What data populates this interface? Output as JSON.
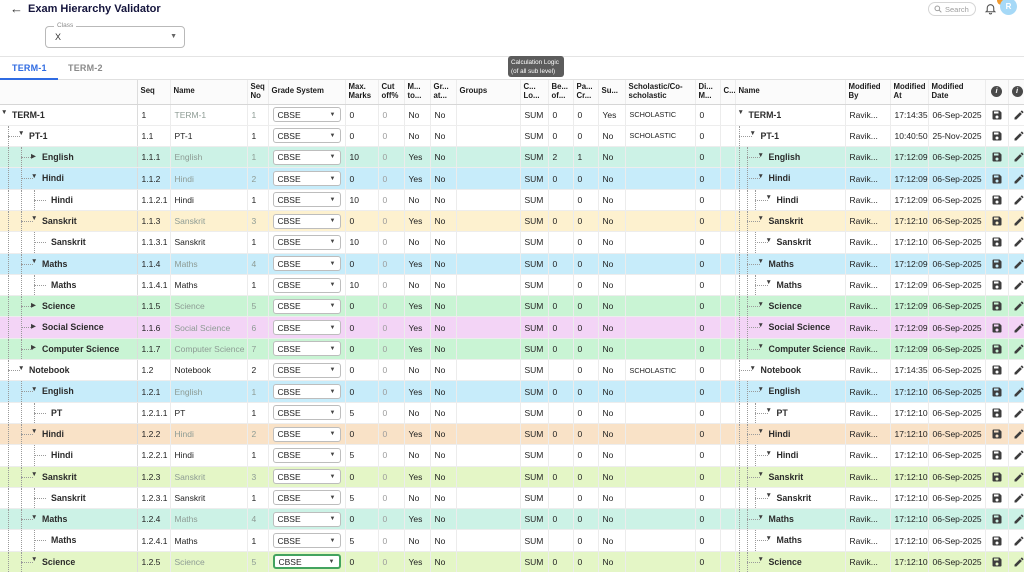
{
  "app": {
    "title": "Exam Hierarchy Validator",
    "back_icon": "←",
    "search_placeholder": "Search",
    "avatar_initial": "R",
    "accent_color": "#2f6be2",
    "save_color": "#2e6be4"
  },
  "filters": {
    "class_label": "Class",
    "class_value": "X"
  },
  "tabs": [
    {
      "label": "TERM-1",
      "active": true
    },
    {
      "label": "TERM-2",
      "active": false
    }
  ],
  "save_button": "SAVE",
  "tooltip": {
    "line1": "Calculation Logic",
    "line2": "(of all sub level)"
  },
  "palette": {
    "white": "#ffffff",
    "mint": "#ccf2e6",
    "cyan": "#c7ecfa",
    "cream": "#fdf1cf",
    "green": "#c9f4d4",
    "pink": "#f3d4f6",
    "peach": "#f9e2c7",
    "lime": "#e4f6c6"
  },
  "columns": [
    {
      "id": "tree",
      "lines": [
        "",
        ""
      ]
    },
    {
      "id": "seq",
      "lines": [
        "Seq",
        ""
      ]
    },
    {
      "id": "name",
      "lines": [
        "Name",
        ""
      ]
    },
    {
      "id": "seq_no",
      "lines": [
        "Seq",
        "No"
      ]
    },
    {
      "id": "grade",
      "lines": [
        "Grade System",
        ""
      ]
    },
    {
      "id": "max_marks",
      "lines": [
        "Max.",
        "Marks"
      ]
    },
    {
      "id": "cut_off",
      "lines": [
        "Cut",
        "off%"
      ]
    },
    {
      "id": "m_to",
      "lines": [
        "M...",
        "to..."
      ]
    },
    {
      "id": "gr_at",
      "lines": [
        "Gr...",
        "at..."
      ]
    },
    {
      "id": "groups",
      "lines": [
        "Groups",
        ""
      ]
    },
    {
      "id": "calc_logic",
      "lines": [
        "C...",
        "Lo..."
      ]
    },
    {
      "id": "best_of",
      "lines": [
        "Be...",
        "of..."
      ]
    },
    {
      "id": "pass_cr",
      "lines": [
        "Pa...",
        "Cr..."
      ]
    },
    {
      "id": "su",
      "lines": [
        "Su...",
        ""
      ]
    },
    {
      "id": "scholastic",
      "lines": [
        "Scholastic/Co-",
        "scholastic"
      ]
    },
    {
      "id": "di_m",
      "lines": [
        "Di...",
        "M..."
      ]
    },
    {
      "id": "c",
      "lines": [
        "C...",
        ""
      ]
    },
    {
      "id": "name2",
      "lines": [
        "Name",
        ""
      ]
    },
    {
      "id": "modified_by",
      "lines": [
        "Modified",
        "By"
      ]
    },
    {
      "id": "modified_at",
      "lines": [
        "Modified",
        "At"
      ]
    },
    {
      "id": "modified_date",
      "lines": [
        "Modified Date",
        ""
      ]
    },
    {
      "id": "save_col",
      "lines": [],
      "icon": "info-icon"
    },
    {
      "id": "edit_col",
      "lines": [],
      "icon": "info-icon"
    }
  ],
  "rows": [
    {
      "level": 0,
      "arrow": "down",
      "name": "TERM-1",
      "seq": "1",
      "seq_no": "1",
      "grade": "CBSE",
      "max_marks": "0",
      "cut_off": "0",
      "m_to": "No",
      "gr_at": "No",
      "groups": "",
      "calc_logic": "SUM",
      "best_of": "0",
      "pass_cr": "0",
      "su": "Yes",
      "scholastic": "SCHOLASTIC",
      "di_m": "0",
      "c": "",
      "modified_by": "Ravik...",
      "modified_at": "17:14:35",
      "modified_date": "06-Sep-2025",
      "color": "white",
      "name_muted": true,
      "focus": false
    },
    {
      "level": 1,
      "arrow": "down",
      "name": "PT-1",
      "seq": "1.1",
      "seq_no": "1",
      "grade": "CBSE",
      "max_marks": "0",
      "cut_off": "0",
      "m_to": "No",
      "gr_at": "No",
      "groups": "",
      "calc_logic": "SUM",
      "best_of": "0",
      "pass_cr": "0",
      "su": "No",
      "scholastic": "SCHOLASTIC",
      "di_m": "0",
      "c": "",
      "modified_by": "Ravik...",
      "modified_at": "10:40:50",
      "modified_date": "25-Nov-2025",
      "color": "white",
      "name_muted": false,
      "focus": false
    },
    {
      "level": 2,
      "arrow": "right",
      "name": "English",
      "seq": "1.1.1",
      "seq_no": "1",
      "grade": "CBSE",
      "max_marks": "10",
      "cut_off": "0",
      "m_to": "Yes",
      "gr_at": "No",
      "groups": "",
      "calc_logic": "SUM",
      "best_of": "2",
      "pass_cr": "1",
      "su": "No",
      "scholastic": "",
      "di_m": "0",
      "c": "",
      "modified_by": "Ravik...",
      "modified_at": "17:12:09",
      "modified_date": "06-Sep-2025",
      "color": "mint",
      "name_muted": true,
      "focus": false
    },
    {
      "level": 2,
      "arrow": "down",
      "name": "Hindi",
      "seq": "1.1.2",
      "seq_no": "2",
      "grade": "CBSE",
      "max_marks": "0",
      "cut_off": "0",
      "m_to": "Yes",
      "gr_at": "No",
      "groups": "",
      "calc_logic": "SUM",
      "best_of": "0",
      "pass_cr": "0",
      "su": "No",
      "scholastic": "",
      "di_m": "0",
      "c": "",
      "modified_by": "Ravik...",
      "modified_at": "17:12:09",
      "modified_date": "06-Sep-2025",
      "color": "cyan",
      "name_muted": true,
      "focus": false
    },
    {
      "level": 3,
      "arrow": "none",
      "name": "Hindi",
      "seq": "1.1.2.1",
      "seq_no": "1",
      "grade": "CBSE",
      "max_marks": "10",
      "cut_off": "0",
      "m_to": "No",
      "gr_at": "No",
      "groups": "",
      "calc_logic": "SUM",
      "best_of": "",
      "pass_cr": "0",
      "su": "No",
      "scholastic": "",
      "di_m": "0",
      "c": "",
      "modified_by": "Ravik...",
      "modified_at": "17:12:09",
      "modified_date": "06-Sep-2025",
      "color": "white",
      "name_muted": false,
      "focus": false
    },
    {
      "level": 2,
      "arrow": "down",
      "name": "Sanskrit",
      "seq": "1.1.3",
      "seq_no": "3",
      "grade": "CBSE",
      "max_marks": "0",
      "cut_off": "0",
      "m_to": "Yes",
      "gr_at": "No",
      "groups": "",
      "calc_logic": "SUM",
      "best_of": "0",
      "pass_cr": "0",
      "su": "No",
      "scholastic": "",
      "di_m": "0",
      "c": "",
      "modified_by": "Ravik...",
      "modified_at": "17:12:10",
      "modified_date": "06-Sep-2025",
      "color": "cream",
      "name_muted": true,
      "focus": false
    },
    {
      "level": 3,
      "arrow": "none",
      "name": "Sanskrit",
      "seq": "1.1.3.1",
      "seq_no": "1",
      "grade": "CBSE",
      "max_marks": "10",
      "cut_off": "0",
      "m_to": "No",
      "gr_at": "No",
      "groups": "",
      "calc_logic": "SUM",
      "best_of": "",
      "pass_cr": "0",
      "su": "No",
      "scholastic": "",
      "di_m": "0",
      "c": "",
      "modified_by": "Ravik...",
      "modified_at": "17:12:10",
      "modified_date": "06-Sep-2025",
      "color": "white",
      "name_muted": false,
      "focus": false
    },
    {
      "level": 2,
      "arrow": "down",
      "name": "Maths",
      "seq": "1.1.4",
      "seq_no": "4",
      "grade": "CBSE",
      "max_marks": "0",
      "cut_off": "0",
      "m_to": "Yes",
      "gr_at": "No",
      "groups": "",
      "calc_logic": "SUM",
      "best_of": "0",
      "pass_cr": "0",
      "su": "No",
      "scholastic": "",
      "di_m": "0",
      "c": "",
      "modified_by": "Ravik...",
      "modified_at": "17:12:09",
      "modified_date": "06-Sep-2025",
      "color": "cyan",
      "name_muted": true,
      "focus": false
    },
    {
      "level": 3,
      "arrow": "none",
      "name": "Maths",
      "seq": "1.1.4.1",
      "seq_no": "1",
      "grade": "CBSE",
      "max_marks": "10",
      "cut_off": "0",
      "m_to": "No",
      "gr_at": "No",
      "groups": "",
      "calc_logic": "SUM",
      "best_of": "",
      "pass_cr": "0",
      "su": "No",
      "scholastic": "",
      "di_m": "0",
      "c": "",
      "modified_by": "Ravik...",
      "modified_at": "17:12:09",
      "modified_date": "06-Sep-2025",
      "color": "white",
      "name_muted": false,
      "focus": false
    },
    {
      "level": 2,
      "arrow": "right",
      "name": "Science",
      "seq": "1.1.5",
      "seq_no": "5",
      "grade": "CBSE",
      "max_marks": "0",
      "cut_off": "0",
      "m_to": "Yes",
      "gr_at": "No",
      "groups": "",
      "calc_logic": "SUM",
      "best_of": "0",
      "pass_cr": "0",
      "su": "No",
      "scholastic": "",
      "di_m": "0",
      "c": "",
      "modified_by": "Ravik...",
      "modified_at": "17:12:09",
      "modified_date": "06-Sep-2025",
      "color": "green",
      "name_muted": true,
      "focus": false
    },
    {
      "level": 2,
      "arrow": "right",
      "name": "Social Science",
      "seq": "1.1.6",
      "seq_no": "6",
      "grade": "CBSE",
      "max_marks": "0",
      "cut_off": "0",
      "m_to": "Yes",
      "gr_at": "No",
      "groups": "",
      "calc_logic": "SUM",
      "best_of": "0",
      "pass_cr": "0",
      "su": "No",
      "scholastic": "",
      "di_m": "0",
      "c": "",
      "modified_by": "Ravik...",
      "modified_at": "17:12:09",
      "modified_date": "06-Sep-2025",
      "color": "pink",
      "name_muted": true,
      "focus": false
    },
    {
      "level": 2,
      "arrow": "right",
      "name": "Computer Science",
      "seq": "1.1.7",
      "seq_no": "7",
      "grade": "CBSE",
      "max_marks": "0",
      "cut_off": "0",
      "m_to": "Yes",
      "gr_at": "No",
      "groups": "",
      "calc_logic": "SUM",
      "best_of": "0",
      "pass_cr": "0",
      "su": "No",
      "scholastic": "",
      "di_m": "0",
      "c": "",
      "modified_by": "Ravik...",
      "modified_at": "17:12:09",
      "modified_date": "06-Sep-2025",
      "color": "green",
      "name_muted": true,
      "focus": false
    },
    {
      "level": 1,
      "arrow": "down",
      "name": "Notebook",
      "seq": "1.2",
      "seq_no": "2",
      "grade": "CBSE",
      "max_marks": "0",
      "cut_off": "0",
      "m_to": "No",
      "gr_at": "No",
      "groups": "",
      "calc_logic": "SUM",
      "best_of": "",
      "pass_cr": "0",
      "su": "No",
      "scholastic": "SCHOLASTIC",
      "di_m": "0",
      "c": "",
      "modified_by": "Ravik...",
      "modified_at": "17:14:35",
      "modified_date": "06-Sep-2025",
      "color": "white",
      "name_muted": false,
      "focus": false
    },
    {
      "level": 2,
      "arrow": "down",
      "name": "English",
      "seq": "1.2.1",
      "seq_no": "1",
      "grade": "CBSE",
      "max_marks": "0",
      "cut_off": "0",
      "m_to": "Yes",
      "gr_at": "No",
      "groups": "",
      "calc_logic": "SUM",
      "best_of": "0",
      "pass_cr": "0",
      "su": "No",
      "scholastic": "",
      "di_m": "0",
      "c": "",
      "modified_by": "Ravik...",
      "modified_at": "17:12:10",
      "modified_date": "06-Sep-2025",
      "color": "cyan",
      "name_muted": true,
      "focus": false
    },
    {
      "level": 3,
      "arrow": "none",
      "name": "PT",
      "seq": "1.2.1.1",
      "seq_no": "1",
      "grade": "CBSE",
      "max_marks": "5",
      "cut_off": "0",
      "m_to": "No",
      "gr_at": "No",
      "groups": "",
      "calc_logic": "SUM",
      "best_of": "",
      "pass_cr": "0",
      "su": "No",
      "scholastic": "",
      "di_m": "0",
      "c": "",
      "modified_by": "Ravik...",
      "modified_at": "17:12:10",
      "modified_date": "06-Sep-2025",
      "color": "white",
      "name_muted": false,
      "focus": false
    },
    {
      "level": 2,
      "arrow": "down",
      "name": "Hindi",
      "seq": "1.2.2",
      "seq_no": "2",
      "grade": "CBSE",
      "max_marks": "0",
      "cut_off": "0",
      "m_to": "Yes",
      "gr_at": "No",
      "groups": "",
      "calc_logic": "SUM",
      "best_of": "0",
      "pass_cr": "0",
      "su": "No",
      "scholastic": "",
      "di_m": "0",
      "c": "",
      "modified_by": "Ravik...",
      "modified_at": "17:12:10",
      "modified_date": "06-Sep-2025",
      "color": "peach",
      "name_muted": true,
      "focus": false
    },
    {
      "level": 3,
      "arrow": "none",
      "name": "Hindi",
      "seq": "1.2.2.1",
      "seq_no": "1",
      "grade": "CBSE",
      "max_marks": "5",
      "cut_off": "0",
      "m_to": "No",
      "gr_at": "No",
      "groups": "",
      "calc_logic": "SUM",
      "best_of": "",
      "pass_cr": "0",
      "su": "No",
      "scholastic": "",
      "di_m": "0",
      "c": "",
      "modified_by": "Ravik...",
      "modified_at": "17:12:10",
      "modified_date": "06-Sep-2025",
      "color": "white",
      "name_muted": false,
      "focus": false
    },
    {
      "level": 2,
      "arrow": "down",
      "name": "Sanskrit",
      "seq": "1.2.3",
      "seq_no": "3",
      "grade": "CBSE",
      "max_marks": "0",
      "cut_off": "0",
      "m_to": "Yes",
      "gr_at": "No",
      "groups": "",
      "calc_logic": "SUM",
      "best_of": "0",
      "pass_cr": "0",
      "su": "No",
      "scholastic": "",
      "di_m": "0",
      "c": "",
      "modified_by": "Ravik...",
      "modified_at": "17:12:10",
      "modified_date": "06-Sep-2025",
      "color": "lime",
      "name_muted": true,
      "focus": false
    },
    {
      "level": 3,
      "arrow": "none",
      "name": "Sanskrit",
      "seq": "1.2.3.1",
      "seq_no": "1",
      "grade": "CBSE",
      "max_marks": "5",
      "cut_off": "0",
      "m_to": "No",
      "gr_at": "No",
      "groups": "",
      "calc_logic": "SUM",
      "best_of": "",
      "pass_cr": "0",
      "su": "No",
      "scholastic": "",
      "di_m": "0",
      "c": "",
      "modified_by": "Ravik...",
      "modified_at": "17:12:10",
      "modified_date": "06-Sep-2025",
      "color": "white",
      "name_muted": false,
      "focus": false
    },
    {
      "level": 2,
      "arrow": "down",
      "name": "Maths",
      "seq": "1.2.4",
      "seq_no": "4",
      "grade": "CBSE",
      "max_marks": "0",
      "cut_off": "0",
      "m_to": "Yes",
      "gr_at": "No",
      "groups": "",
      "calc_logic": "SUM",
      "best_of": "0",
      "pass_cr": "0",
      "su": "No",
      "scholastic": "",
      "di_m": "0",
      "c": "",
      "modified_by": "Ravik...",
      "modified_at": "17:12:10",
      "modified_date": "06-Sep-2025",
      "color": "mint",
      "name_muted": true,
      "focus": false
    },
    {
      "level": 3,
      "arrow": "none",
      "name": "Maths",
      "seq": "1.2.4.1",
      "seq_no": "1",
      "grade": "CBSE",
      "max_marks": "5",
      "cut_off": "0",
      "m_to": "No",
      "gr_at": "No",
      "groups": "",
      "calc_logic": "SUM",
      "best_of": "",
      "pass_cr": "0",
      "su": "No",
      "scholastic": "",
      "di_m": "0",
      "c": "",
      "modified_by": "Ravik...",
      "modified_at": "17:12:10",
      "modified_date": "06-Sep-2025",
      "color": "white",
      "name_muted": false,
      "focus": false
    },
    {
      "level": 2,
      "arrow": "down",
      "name": "Science",
      "seq": "1.2.5",
      "seq_no": "5",
      "grade": "CBSE",
      "max_marks": "0",
      "cut_off": "0",
      "m_to": "Yes",
      "gr_at": "No",
      "groups": "",
      "calc_logic": "SUM",
      "best_of": "0",
      "pass_cr": "0",
      "su": "No",
      "scholastic": "",
      "di_m": "0",
      "c": "",
      "modified_by": "Ravik...",
      "modified_at": "17:12:10",
      "modified_date": "06-Sep-2025",
      "color": "lime",
      "name_muted": true,
      "focus": true
    }
  ]
}
